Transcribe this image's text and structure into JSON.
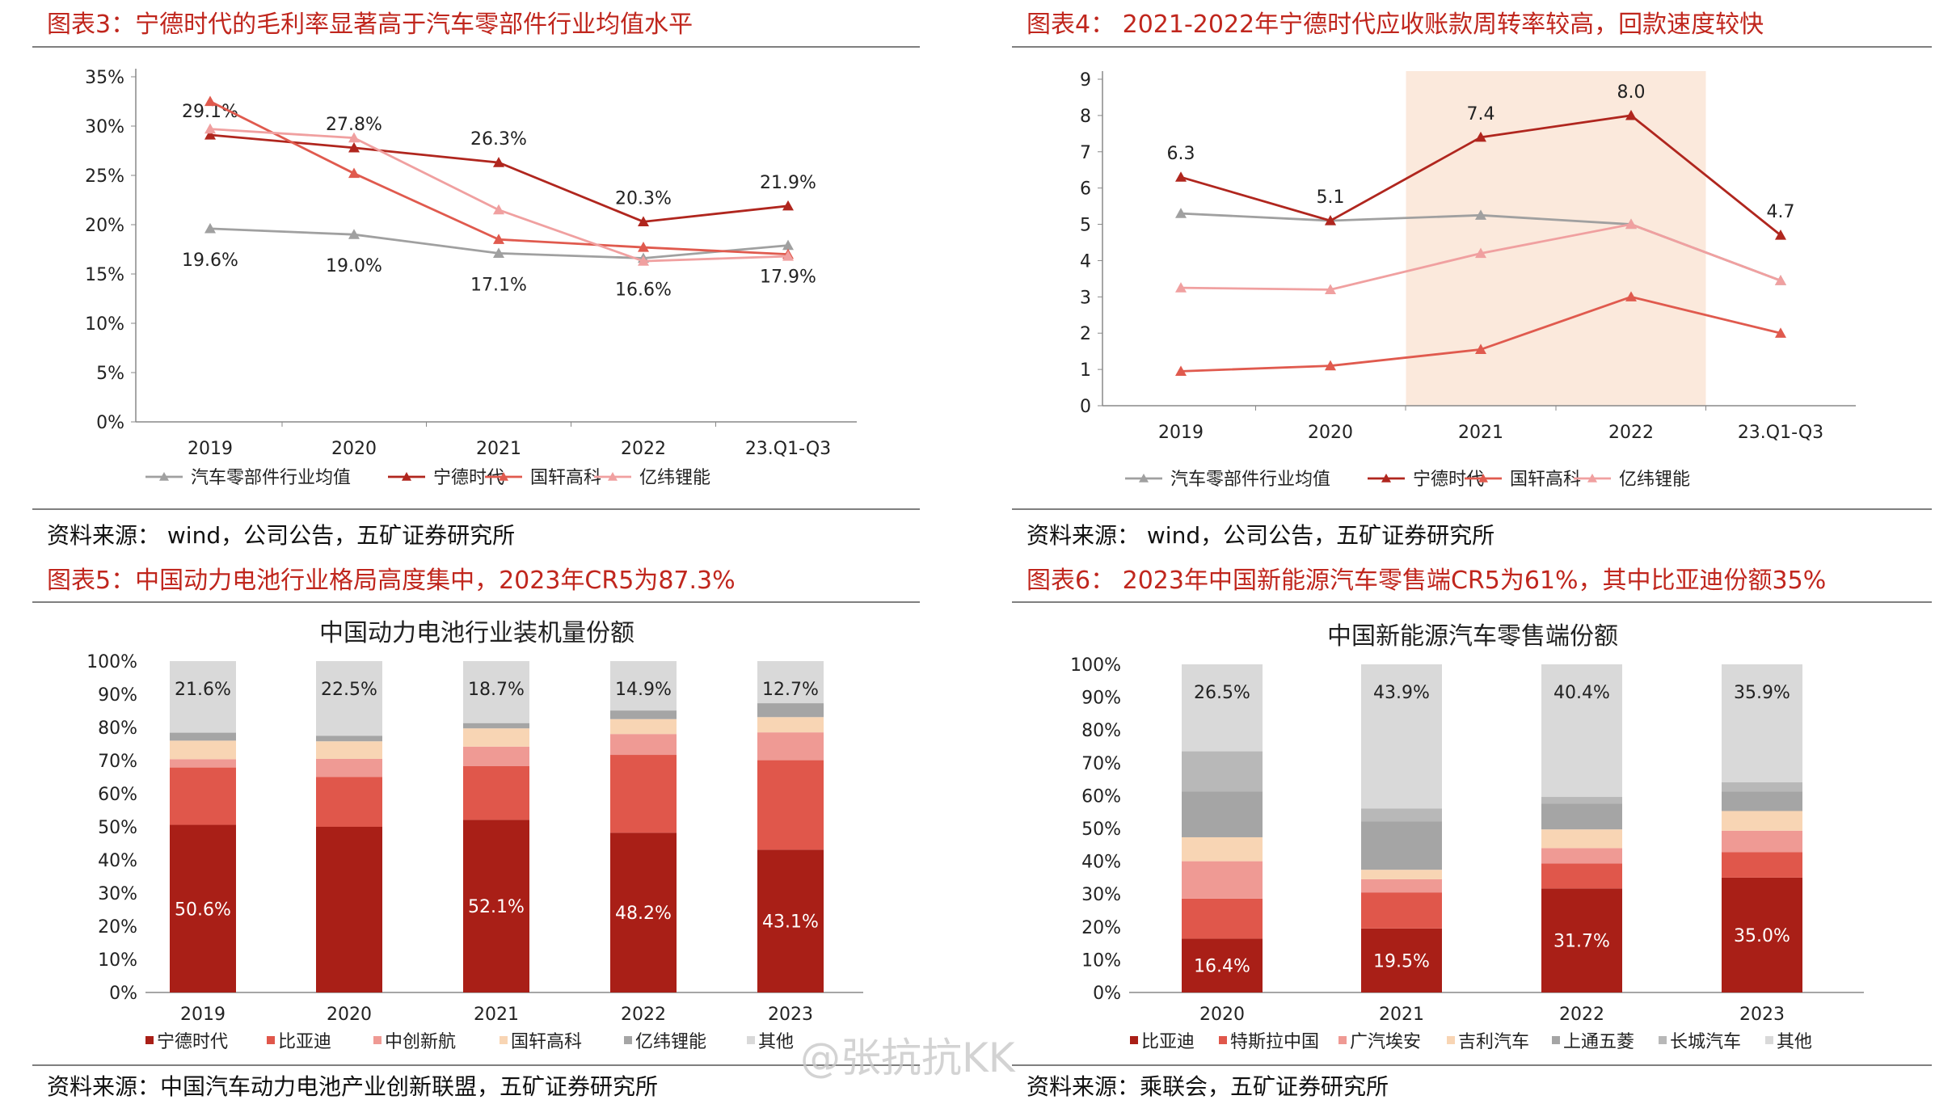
{
  "panels": {
    "p3": {
      "title": "图表3：宁德时代的毛利率显著高于汽车零部件行业均值水平",
      "source": "资料来源： wind，公司公告，五矿证券研究所"
    },
    "p4": {
      "title": "图表4： 2021-2022年宁德时代应收账款周转率较高，回款速度较快",
      "source": "资料来源： wind，公司公告，五矿证券研究所"
    },
    "p5": {
      "title": "图表5：中国动力电池行业格局高度集中，2023年CR5为87.3%",
      "source": "资料来源：中国汽车动力电池产业创新联盟，五矿证券研究所"
    },
    "p6": {
      "title": "图表6： 2023年中国新能源汽车零售端CR5为61%，其中比亚迪份额35%",
      "source": "资料来源：乘联会，五矿证券研究所"
    }
  },
  "watermark": "@张抗抗KK",
  "chart_data": [
    {
      "type": "line",
      "categories": [
        "2019",
        "2020",
        "2021",
        "2022",
        "23.Q1-Q3"
      ],
      "ylim": [
        0,
        35
      ],
      "yticks": [
        "0%",
        "5%",
        "10%",
        "15%",
        "20%",
        "25%",
        "30%",
        "35%"
      ],
      "series": [
        {
          "name": "汽车零部件行业均值",
          "color": "#a0a0a0",
          "values": [
            19.6,
            19.0,
            17.1,
            16.6,
            17.9
          ],
          "labels": [
            "19.6%",
            "19.0%",
            "17.1%",
            "16.6%",
            "17.9%"
          ]
        },
        {
          "name": "宁德时代",
          "color": "#b0261e",
          "values": [
            29.1,
            27.8,
            26.3,
            20.3,
            21.9
          ],
          "labels": [
            "29.1%",
            "27.8%",
            "26.3%",
            "20.3%",
            "21.9%"
          ]
        },
        {
          "name": "国轩高科",
          "color": "#e05a4e",
          "values": [
            32.5,
            25.2,
            18.5,
            17.7,
            17.0
          ]
        },
        {
          "name": "亿纬锂能",
          "color": "#f0a0a0",
          "values": [
            29.7,
            28.8,
            21.5,
            16.3,
            16.8
          ]
        }
      ],
      "legend": "bottom",
      "grid": false
    },
    {
      "type": "line",
      "categories": [
        "2019",
        "2020",
        "2021",
        "2022",
        "23.Q1-Q3"
      ],
      "ylim": [
        0,
        9
      ],
      "yticks": [
        "0",
        "1",
        "2",
        "3",
        "4",
        "5",
        "6",
        "7",
        "8",
        "9"
      ],
      "highlight_categories": [
        "2021",
        "2022"
      ],
      "series": [
        {
          "name": "汽车零部件行业均值",
          "color": "#a0a0a0",
          "values": [
            5.3,
            5.1,
            5.25,
            5.0,
            3.45
          ]
        },
        {
          "name": "宁德时代",
          "color": "#b0261e",
          "values": [
            6.3,
            5.1,
            7.4,
            8.0,
            4.7
          ],
          "labels": [
            "6.3",
            "5.1",
            "7.4",
            "8.0",
            "4.7"
          ]
        },
        {
          "name": "国轩高科",
          "color": "#e05a4e",
          "values": [
            0.95,
            1.1,
            1.55,
            3.0,
            2.0
          ]
        },
        {
          "name": "亿纬锂能",
          "color": "#f0a0a0",
          "values": [
            3.25,
            3.2,
            4.2,
            5.0,
            3.45
          ]
        }
      ],
      "legend": "bottom",
      "grid": false
    },
    {
      "type": "bar",
      "stacked": true,
      "title": "中国动力电池行业装机量份额",
      "categories": [
        "2019",
        "2020",
        "2021",
        "2022",
        "2023"
      ],
      "ylim": [
        0,
        100
      ],
      "yticks": [
        "0%",
        "10%",
        "20%",
        "30%",
        "40%",
        "50%",
        "60%",
        "70%",
        "80%",
        "90%",
        "100%"
      ],
      "series": [
        {
          "name": "宁德时代",
          "color": "#a91f17",
          "values": [
            50.6,
            50.0,
            52.1,
            48.2,
            43.1
          ],
          "labels": [
            "50.6%",
            "",
            "52.1%",
            "48.2%",
            "43.1%"
          ]
        },
        {
          "name": "比亚迪",
          "color": "#e0574b",
          "values": [
            17.3,
            15.0,
            16.2,
            23.5,
            27.0
          ]
        },
        {
          "name": "中创新航",
          "color": "#ef9a94",
          "values": [
            2.5,
            5.5,
            5.9,
            6.3,
            8.4
          ]
        },
        {
          "name": "国轩高科",
          "color": "#f8d5b4",
          "values": [
            5.6,
            5.3,
            5.5,
            4.5,
            4.6
          ]
        },
        {
          "name": "亿纬锂能",
          "color": "#a5a5a5",
          "values": [
            2.4,
            1.7,
            1.6,
            2.6,
            4.2
          ]
        },
        {
          "name": "其他",
          "color": "#d9d9d9",
          "values": [
            21.6,
            22.5,
            18.7,
            14.9,
            12.7
          ],
          "labels": [
            "21.6%",
            "22.5%",
            "18.7%",
            "14.9%",
            "12.7%"
          ]
        }
      ],
      "legend": "bottom"
    },
    {
      "type": "bar",
      "stacked": true,
      "title": "中国新能源汽车零售端份额",
      "categories": [
        "2020",
        "2021",
        "2022",
        "2023"
      ],
      "ylim": [
        0,
        100
      ],
      "yticks": [
        "0%",
        "10%",
        "20%",
        "30%",
        "40%",
        "50%",
        "60%",
        "70%",
        "80%",
        "90%",
        "100%"
      ],
      "series": [
        {
          "name": "比亚迪",
          "color": "#a91f17",
          "values": [
            16.4,
            19.5,
            31.7,
            35.0
          ],
          "labels": [
            "16.4%",
            "19.5%",
            "31.7%",
            "35.0%"
          ]
        },
        {
          "name": "特斯拉中国",
          "color": "#e0574b",
          "values": [
            12.2,
            11.0,
            7.6,
            7.8
          ]
        },
        {
          "name": "广汽埃安",
          "color": "#ef9a94",
          "values": [
            11.4,
            4.0,
            4.7,
            6.5
          ]
        },
        {
          "name": "吉利汽车",
          "color": "#f8d5b4",
          "values": [
            7.3,
            2.9,
            5.7,
            6.0
          ]
        },
        {
          "name": "上通五菱",
          "color": "#a5a5a5",
          "values": [
            14.0,
            14.7,
            7.9,
            5.9
          ]
        },
        {
          "name": "长城汽车",
          "color": "#b8b8b8",
          "values": [
            12.2,
            4.0,
            2.0,
            2.9
          ]
        },
        {
          "name": "其他",
          "color": "#d9d9d9",
          "values": [
            26.5,
            43.9,
            40.4,
            35.9
          ],
          "labels": [
            "26.5%",
            "43.9%",
            "40.4%",
            "35.9%"
          ]
        }
      ],
      "legend": "bottom"
    }
  ]
}
